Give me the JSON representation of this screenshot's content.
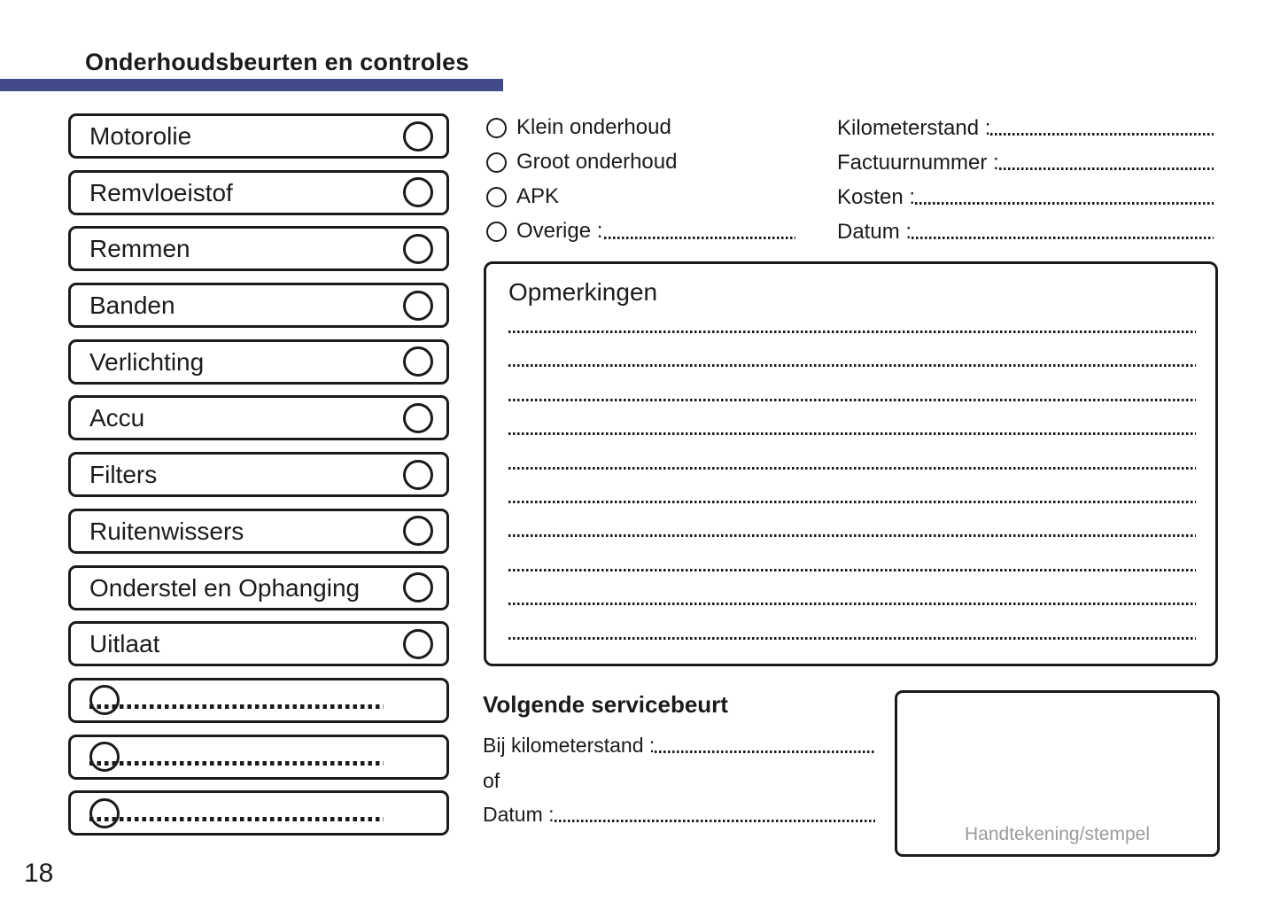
{
  "colors": {
    "accent": "#434a8c",
    "ink": "#1b1b1b",
    "muted": "#9b9b9b"
  },
  "header": {
    "title": "Onderhoudsbeurten en controles"
  },
  "checklist": {
    "items": [
      {
        "label": "Motorolie"
      },
      {
        "label": "Remvloeistof"
      },
      {
        "label": "Remmen"
      },
      {
        "label": "Banden"
      },
      {
        "label": "Verlichting"
      },
      {
        "label": "Accu"
      },
      {
        "label": "Filters"
      },
      {
        "label": "Ruitenwissers"
      },
      {
        "label": "Onderstel en Ophanging"
      },
      {
        "label": "Uitlaat"
      },
      {
        "label": "",
        "blank": true
      },
      {
        "label": "",
        "blank": true
      },
      {
        "label": "",
        "blank": true
      }
    ]
  },
  "service_type": {
    "options": [
      {
        "label": "Klein onderhoud"
      },
      {
        "label": "Groot onderhoud"
      },
      {
        "label": "APK"
      },
      {
        "label": "Overige :",
        "has_fill_line": true
      }
    ]
  },
  "service_fields": {
    "rows": [
      {
        "label": "Kilometerstand :"
      },
      {
        "label": "Factuurnummer :"
      },
      {
        "label": "Kosten :"
      },
      {
        "label": "Datum :"
      }
    ]
  },
  "remarks": {
    "title": "Opmerkingen",
    "line_count": 10
  },
  "next_service": {
    "title": "Volgende servicebeurt",
    "km_label": "Bij kilometerstand :",
    "or_label": "of",
    "date_label": "Datum :"
  },
  "signature": {
    "label": "Handtekening/stempel"
  },
  "footer": {
    "page_number": "18"
  }
}
